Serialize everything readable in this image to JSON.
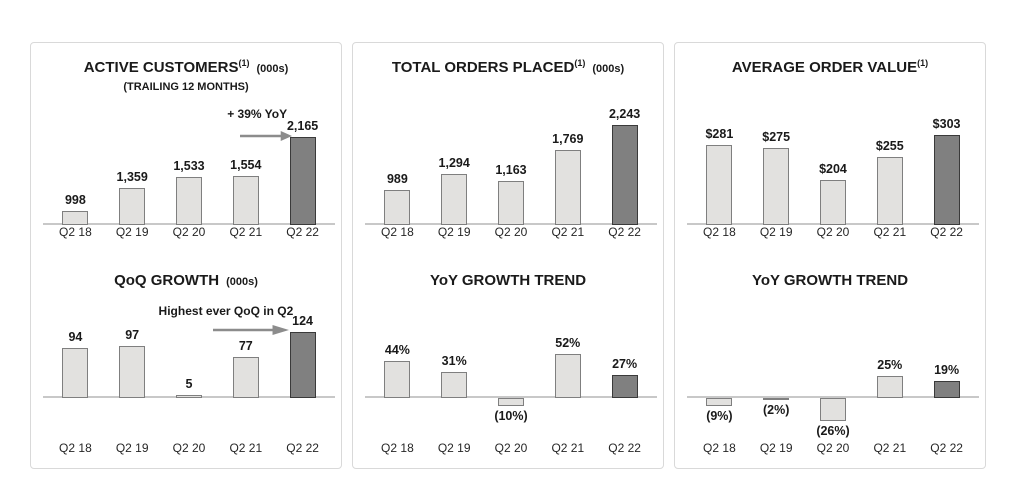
{
  "page": {
    "background": "#ffffff"
  },
  "colors": {
    "panel_border": "#d9d9d9",
    "bar_light": "#e2e1df",
    "bar_light_border": "#7f7f7f",
    "bar_dark": "#808080",
    "bar_dark_border": "#3a3a3a",
    "baseline": "#c8c8c8",
    "arrow": "#8c8c8c",
    "title_text": "#1a1a1a"
  },
  "chart_data": [
    {
      "id": "active-customers",
      "type": "bar",
      "title": "ACTIVE CUSTOMERS",
      "title_sup": "(1)",
      "unit": "(000s)",
      "subtitle": "(TRAILING 12 MONTHS)",
      "annotation": "+ 39% YoY",
      "categories": [
        "Q2 18",
        "Q2 19",
        "Q2 20",
        "Q2 21",
        "Q2 22"
      ],
      "values": [
        998,
        1359,
        1533,
        1554,
        2165
      ],
      "labels": [
        "998",
        "1,359",
        "1,533",
        "1,554",
        "2,165"
      ],
      "ylim": [
        775,
        2165
      ],
      "highlight_index": 4,
      "legend": "none",
      "grid": false
    },
    {
      "id": "qoq-growth",
      "type": "bar",
      "title": "QoQ GROWTH",
      "title_sup": "",
      "unit": "(000s)",
      "subtitle": "",
      "annotation": "Highest ever QoQ in Q2",
      "categories": [
        "Q2 18",
        "Q2 19",
        "Q2 20",
        "Q2 21",
        "Q2 22"
      ],
      "values": [
        94,
        97,
        5,
        77,
        124
      ],
      "labels": [
        "94",
        "97",
        "5",
        "77",
        "124"
      ],
      "ylim": [
        0,
        124
      ],
      "highlight_index": 4,
      "legend": "none",
      "grid": false
    },
    {
      "id": "total-orders-placed",
      "type": "bar",
      "title": "TOTAL ORDERS PLACED",
      "title_sup": "(1)",
      "unit": "(000s)",
      "subtitle": "",
      "annotation": "",
      "categories": [
        "Q2 18",
        "Q2 19",
        "Q2 20",
        "Q2 21",
        "Q2 22"
      ],
      "values": [
        989,
        1294,
        1163,
        1769,
        2243
      ],
      "labels": [
        "989",
        "1,294",
        "1,163",
        "1,769",
        "2,243"
      ],
      "ylim": [
        310,
        2243
      ],
      "highlight_index": 4,
      "legend": "none",
      "grid": false
    },
    {
      "id": "orders-yoy-growth-trend",
      "type": "bar",
      "title": "YoY GROWTH TREND",
      "title_sup": "",
      "unit": "",
      "subtitle": "",
      "annotation": "",
      "categories": [
        "Q2 18",
        "Q2 19",
        "Q2 20",
        "Q2 21",
        "Q2 22"
      ],
      "values": [
        44,
        31,
        -10,
        52,
        27
      ],
      "labels": [
        "44%",
        "31%",
        "(10%)",
        "52%",
        "27%"
      ],
      "ylim": [
        -14,
        52
      ],
      "highlight_index": 4,
      "legend": "none",
      "grid": false
    },
    {
      "id": "average-order-value",
      "type": "bar",
      "title": "AVERAGE ORDER VALUE",
      "title_sup": "(1)",
      "unit": "",
      "subtitle": "",
      "annotation": "",
      "categories": [
        "Q2 18",
        "Q2 19",
        "Q2 20",
        "Q2 21",
        "Q2 22"
      ],
      "values": [
        281,
        275,
        204,
        255,
        303
      ],
      "labels": [
        "$281",
        "$275",
        "$204",
        "$255",
        "$303"
      ],
      "ylim": [
        105,
        303
      ],
      "highlight_index": 4,
      "legend": "none",
      "grid": false
    },
    {
      "id": "aov-yoy-growth-trend",
      "type": "bar",
      "title": "YoY GROWTH TREND",
      "title_sup": "",
      "unit": "",
      "subtitle": "",
      "annotation": "",
      "categories": [
        "Q2 18",
        "Q2 19",
        "Q2 20",
        "Q2 21",
        "Q2 22"
      ],
      "values": [
        -9,
        -2,
        -26,
        25,
        19
      ],
      "labels": [
        "(9%)",
        "(2%)",
        "(26%)",
        "25%",
        "19%"
      ],
      "ylim": [
        -30,
        25
      ],
      "highlight_index": 4,
      "legend": "none",
      "grid": false
    }
  ]
}
